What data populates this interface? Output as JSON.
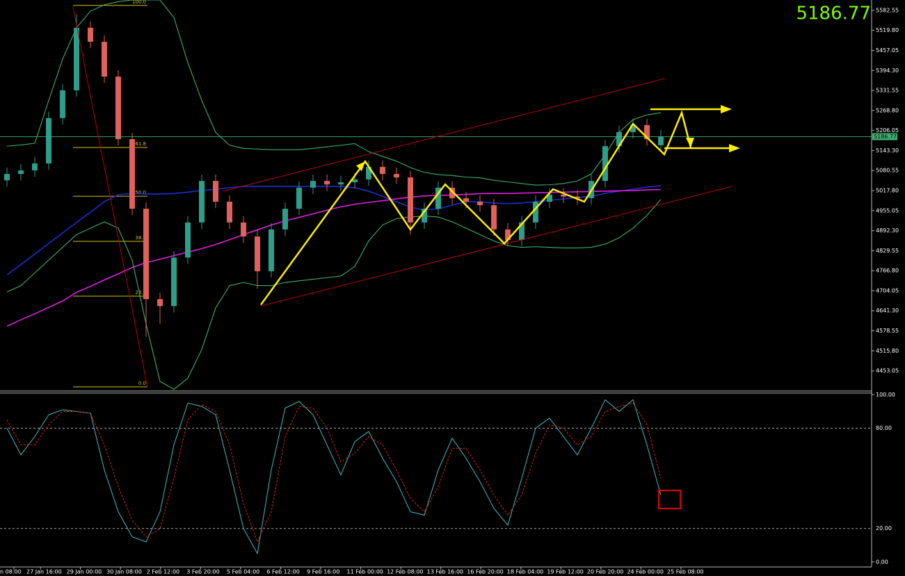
{
  "chart_data": [
    {
      "type": "candlestick",
      "last_price": 5186.77,
      "ylim": [
        4390,
        5615
      ],
      "yticks": [
        5582.55,
        {
          "value": 5519.8,
          "label": "5519.80"
        },
        5457.05,
        {
          "value": 5394.3,
          "label": "5394.30"
        },
        5331.55,
        {
          "value": 5268.8,
          "label": "5268.80"
        },
        5206.05,
        {
          "value": 5143.3,
          "label": "5143.30"
        },
        5080.55,
        {
          "value": 5017.8,
          "label": "5017.80"
        },
        4955.05,
        {
          "value": 4892.3,
          "label": "4892.30"
        },
        4829.55,
        {
          "value": 4766.8,
          "label": "4766.80"
        },
        4704.05,
        {
          "value": 4641.3,
          "label": "4641.30"
        },
        4578.55,
        {
          "value": 4515.8,
          "label": "4515.80"
        },
        4453.05
      ],
      "up_color": "#2e9e8a",
      "down_color": "#e0605a",
      "candles": {
        "open": [
          5050,
          5070,
          5081,
          5103,
          5245,
          5332,
          5528,
          5484,
          5375,
          5179,
          4961,
          4678,
          4656,
          4808,
          4918,
          5048,
          4983,
          4918,
          4874,
          4765,
          4896,
          4961,
          5027,
          5048,
          5037,
          5044,
          5053,
          5092,
          5070,
          5059,
          4918,
          4961,
          5027,
          4994,
          4983,
          4972,
          4896,
          4863,
          4918,
          4983,
          5005,
          4999,
          4994,
          5048,
          5157,
          5201,
          5223,
          5160
        ],
        "high": [
          5090,
          5101,
          5123,
          5265,
          5352,
          5570,
          5548,
          5504,
          5395,
          5199,
          4981,
          4698,
          4828,
          4938,
          5068,
          5068,
          5003,
          4938,
          4894,
          4916,
          4981,
          5047,
          5068,
          5068,
          5064,
          5073,
          5112,
          5112,
          5090,
          5079,
          4981,
          5047,
          5047,
          5014,
          5003,
          4992,
          4916,
          4938,
          5003,
          5025,
          5025,
          5019,
          5068,
          5177,
          5221,
          5243,
          5243,
          5207
        ],
        "low": [
          5030,
          5050,
          5061,
          5083,
          5225,
          5312,
          5464,
          5355,
          5159,
          4941,
          4560,
          4600,
          4636,
          4788,
          4898,
          4963,
          4898,
          4854,
          4710,
          4745,
          4876,
          4941,
          5007,
          5017,
          5017,
          5024,
          5033,
          5050,
          5039,
          4880,
          4898,
          4941,
          4974,
          4963,
          4952,
          4876,
          4843,
          4843,
          4898,
          4963,
          4979,
          4974,
          4974,
          5028,
          5137,
          5181,
          5159,
          5140
        ],
        "close": [
          5070,
          5081,
          5103,
          5245,
          5332,
          5528,
          5484,
          5375,
          5179,
          4961,
          4678,
          4656,
          4808,
          4918,
          5048,
          4983,
          4918,
          4874,
          4765,
          4896,
          4961,
          5027,
          5048,
          5037,
          5044,
          5053,
          5092,
          5070,
          5059,
          4918,
          4961,
          5027,
          4994,
          4983,
          4972,
          4896,
          4863,
          4918,
          4983,
          5005,
          4999,
          4994,
          5048,
          5157,
          5201,
          5223,
          5179,
          5186.77
        ]
      },
      "series": [
        {
          "color": "#1a2fd6",
          "values": [
            4754,
            4786,
            4819,
            4852,
            4885,
            4918,
            4950,
            4983,
            5005,
            5009,
            5007,
            5007,
            5009,
            5013,
            5018,
            5022,
            5027,
            5031,
            5031,
            5031,
            5031,
            5031,
            5031,
            5031,
            5031,
            5027,
            5016,
            5000,
            4983,
            4966,
            4957,
            4961,
            4972,
            4983,
            4983,
            4979,
            4977,
            4979,
            4983,
            4987,
            4992,
            4996,
            5000,
            5009,
            5016,
            5022,
            5029,
            5033
          ]
        },
        {
          "color": "#e020e0",
          "values": [
            4593,
            4613,
            4632,
            4652,
            4672,
            4699,
            4718,
            4738,
            4757,
            4777,
            4792,
            4803,
            4814,
            4825,
            4836,
            4849,
            4864,
            4880,
            4895,
            4910,
            4923,
            4934,
            4945,
            4956,
            4967,
            4975,
            4981,
            4986,
            4992,
            4997,
            5001,
            5003,
            5004,
            5006,
            5008,
            5009,
            5009,
            5010,
            5011,
            5012,
            5013,
            5014,
            5015,
            5016,
            5017,
            5018,
            5020,
            5021
          ]
        },
        {
          "color": "#3cb371",
          "values": [
            5157,
            5161,
            5166,
            5300,
            5430,
            5528,
            5580,
            5600,
            5610,
            5615,
            5615,
            5615,
            5560,
            5419,
            5300,
            5200,
            5160,
            5150,
            5148,
            5146,
            5146,
            5146,
            5150,
            5155,
            5160,
            5165,
            5140,
            5125,
            5110,
            5090,
            5075,
            5068,
            5065,
            5060,
            5058,
            5050,
            5045,
            5040,
            5035,
            5036,
            5040,
            5048,
            5070,
            5130,
            5200,
            5240,
            5255,
            5262
          ]
        },
        {
          "color": "#3cb371",
          "values": [
            4700,
            4720,
            4760,
            4800,
            4840,
            4880,
            4900,
            4920,
            4900,
            4800,
            4600,
            4420,
            4395,
            4430,
            4520,
            4650,
            4720,
            4730,
            4720,
            4720,
            4730,
            4735,
            4740,
            4745,
            4750,
            4780,
            4860,
            4910,
            4930,
            4935,
            4938,
            4935,
            4920,
            4900,
            4880,
            4860,
            4845,
            4840,
            4842,
            4840,
            4838,
            4838,
            4840,
            4850,
            4870,
            4900,
            4940,
            4990
          ]
        }
      ],
      "fib_levels": [
        {
          "value": 100,
          "label": "100.0"
        },
        61.8,
        {
          "value": 50,
          "label": "50.0"
        },
        38.2,
        23.6,
        {
          "value": 0,
          "label": "0.0"
        }
      ],
      "fib_prices": [
        5598,
        5153,
        5000,
        4859,
        4687,
        4403
      ],
      "fib_color": "#d4c21a"
    },
    {
      "type": "line",
      "ylim": [
        -3,
        101
      ],
      "yticks": [
        {
          "value": 100,
          "label": "100.00"
        },
        {
          "value": 80,
          "label": "80.00"
        },
        {
          "value": 20,
          "label": "20.00"
        },
        {
          "value": 0,
          "label": "0.00"
        }
      ],
      "series": [
        {
          "color": "#40c0c0",
          "dash": false,
          "values": [
            80,
            64,
            75,
            88,
            91,
            90,
            89,
            55,
            30,
            15,
            12,
            30,
            70,
            95,
            93,
            88,
            55,
            20,
            5,
            55,
            92,
            96,
            88,
            70,
            52,
            72,
            78,
            62,
            48,
            30,
            28,
            55,
            74,
            62,
            48,
            32,
            22,
            50,
            80,
            86,
            75,
            64,
            80,
            97,
            90,
            97,
            70,
            40
          ]
        },
        {
          "color": "#e02020",
          "dash": true,
          "values": [
            85,
            70,
            70,
            82,
            90,
            90,
            89,
            70,
            45,
            25,
            15,
            20,
            50,
            85,
            94,
            90,
            70,
            35,
            12,
            30,
            75,
            93,
            92,
            80,
            60,
            65,
            75,
            70,
            55,
            38,
            30,
            45,
            68,
            68,
            55,
            40,
            28,
            40,
            65,
            82,
            80,
            70,
            75,
            90,
            93,
            95,
            82,
            50
          ]
        }
      ],
      "x_labels": [
        "n 08:00",
        "27 Jan 16:00",
        "29 Jan 00:00",
        "30 Jan 08:00",
        "2 Feb 12:00",
        "3 Feb 20:00",
        "5 Feb 04:00",
        "6 Feb 12:00",
        "9 Feb 16:00",
        "11 Feb 00:00",
        "12 Feb 08:00",
        "13 Feb 16:00",
        "16 Feb 20:00",
        "18 Feb 04:00",
        "19 Feb 12:00",
        "20 Feb 20:00",
        "24 Feb 00:00",
        "25 Feb 08:00"
      ]
    }
  ]
}
